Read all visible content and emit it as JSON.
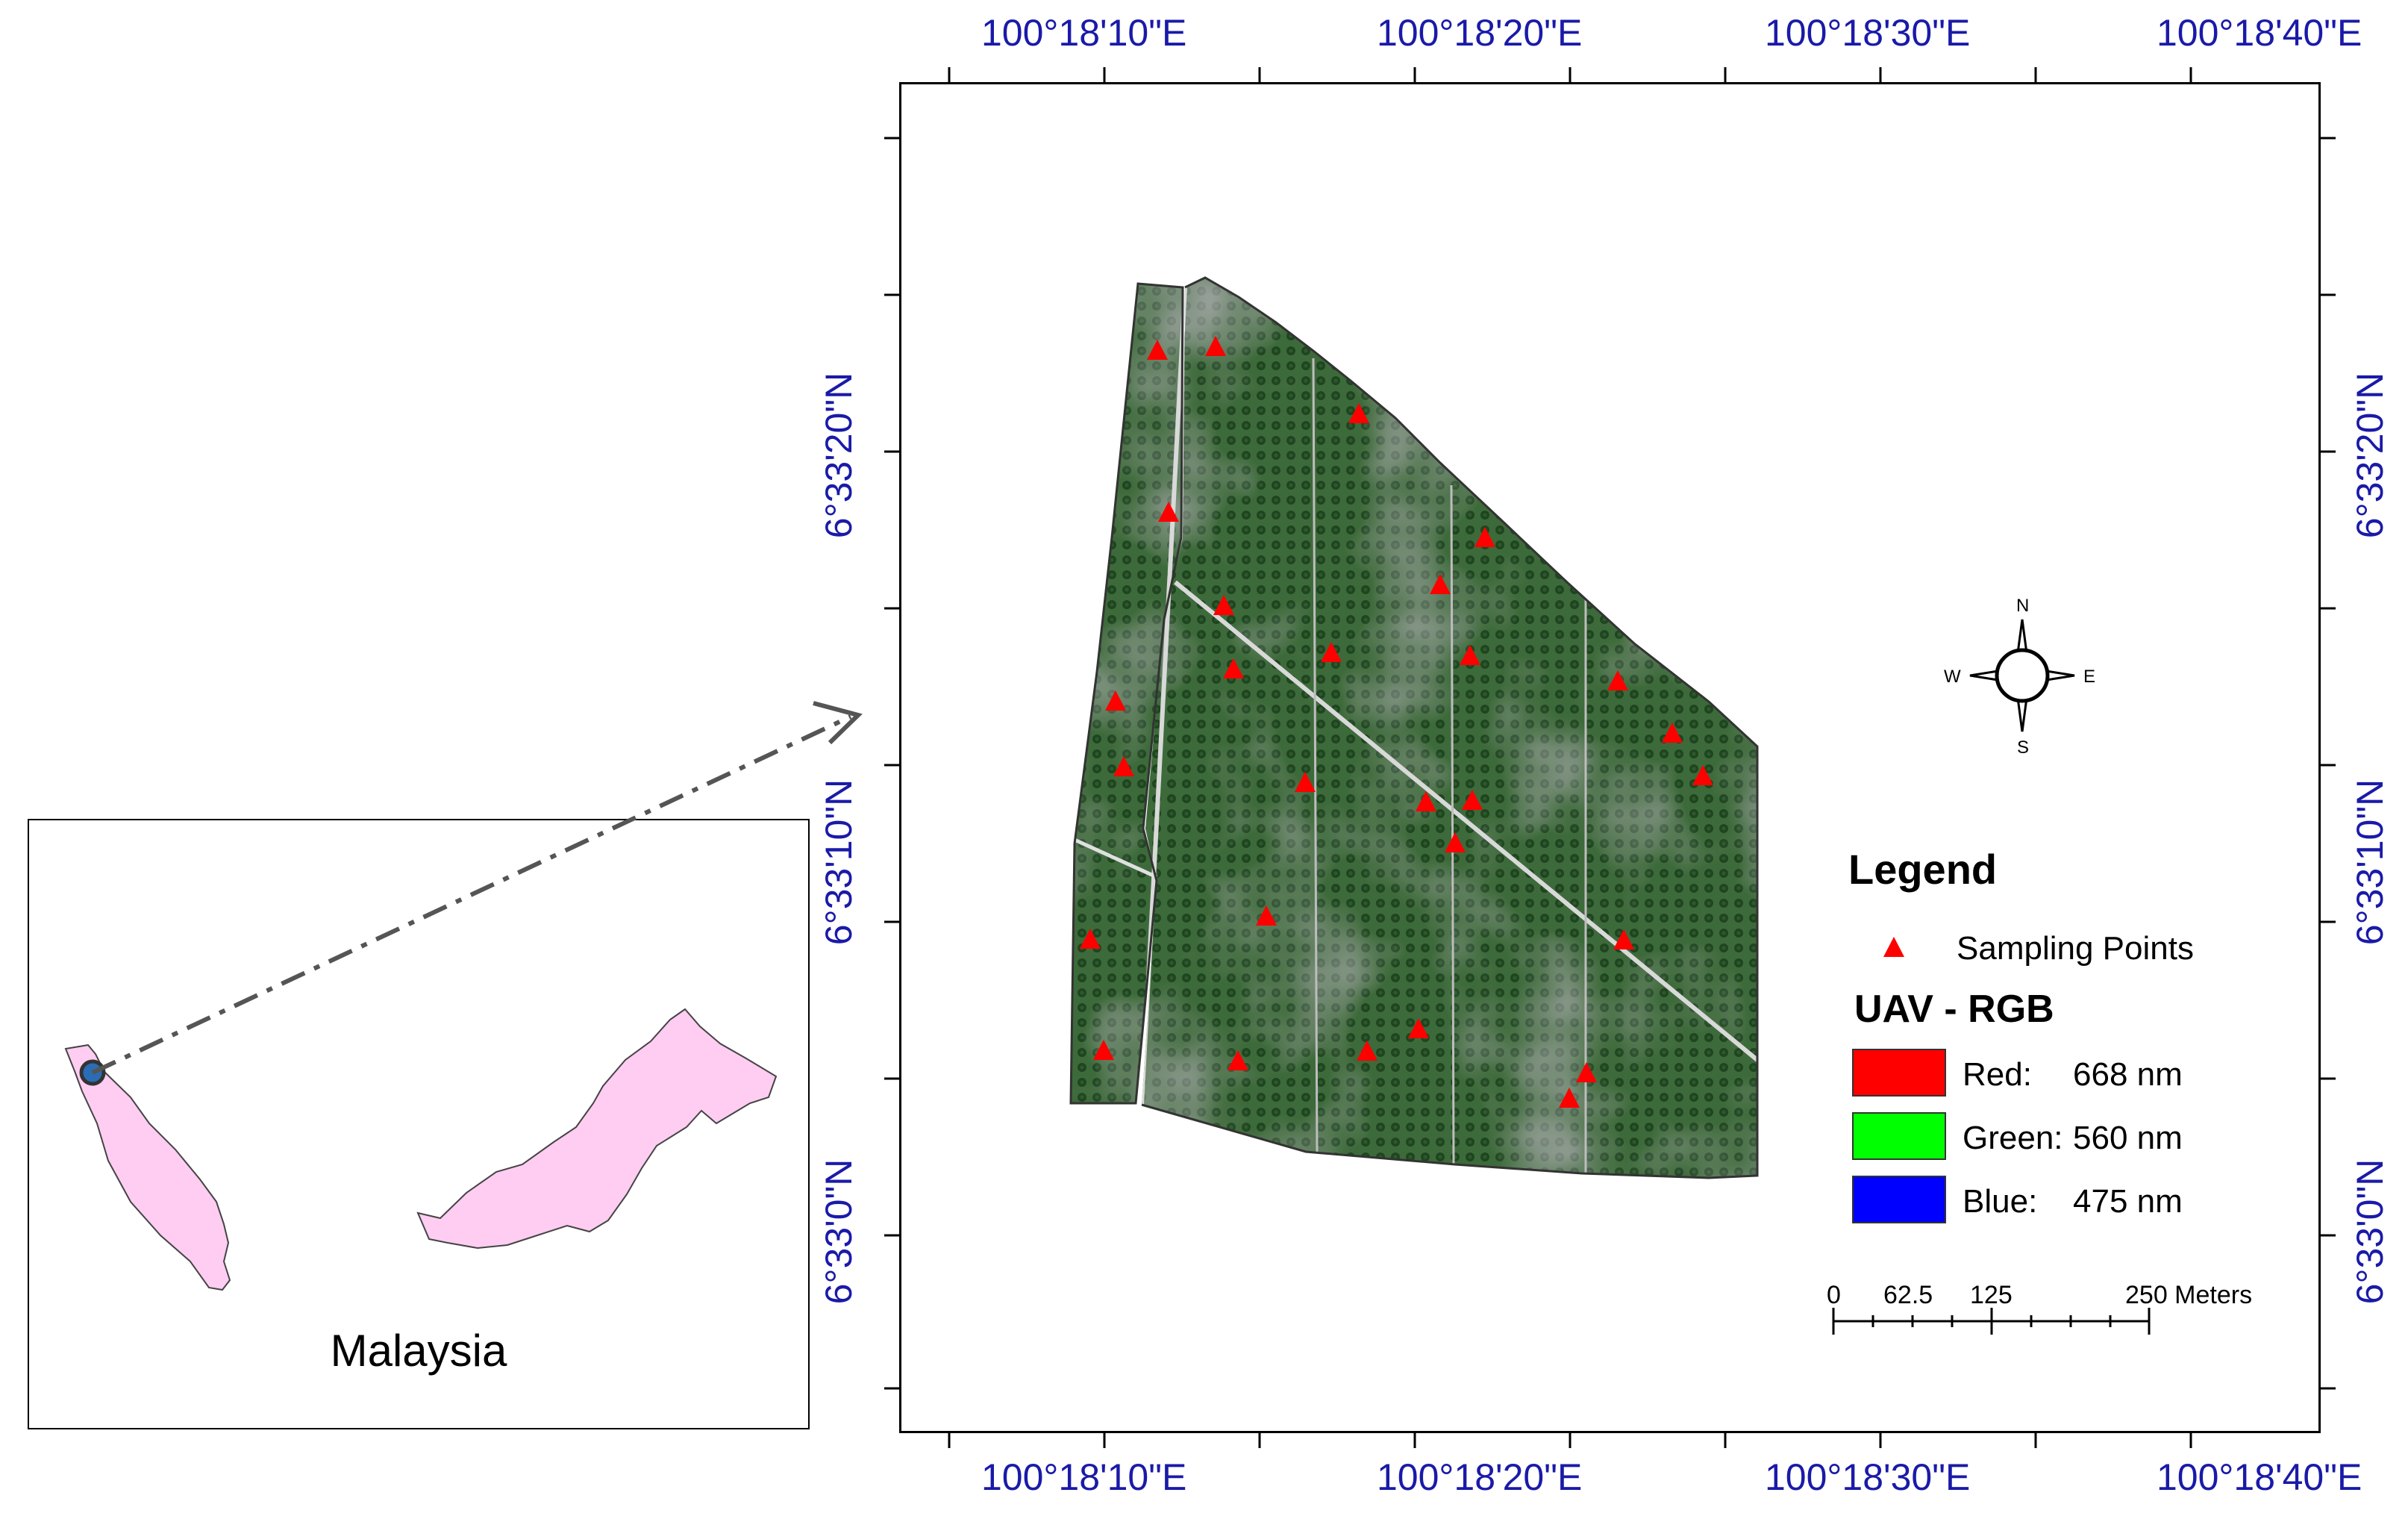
{
  "top_axis_labels": [
    "100°18'10\"E",
    "100°18'20\"E",
    "100°18'30\"E",
    "100°18'40\"E"
  ],
  "bottom_axis_labels": [
    "100°18'10\"E",
    "100°18'20\"E",
    "100°18'30\"E",
    "100°18'40\"E"
  ],
  "left_axis_labels": [
    "6°33'20\"N",
    "6°33'10\"N",
    "6°33'0\"N"
  ],
  "right_axis_labels": [
    "6°33'20\"N",
    "6°33'10\"N",
    "6°33'0\"N"
  ],
  "inset": {
    "country_label": "Malaysia"
  },
  "compass": {
    "n": "N",
    "s": "S",
    "e": "E",
    "w": "W"
  },
  "legend": {
    "title": "Legend",
    "sampling_label": "Sampling Points",
    "uav_title": "UAV - RGB",
    "bands": [
      {
        "name": "Red:",
        "value": "668 nm",
        "color": "#ff0000"
      },
      {
        "name": "Green:",
        "value": "560 nm",
        "color": "#00ff00"
      },
      {
        "name": "Blue:",
        "value": "475 nm",
        "color": "#0000ff"
      }
    ]
  },
  "scale_bar": {
    "ticks": [
      "0",
      "62.5",
      "125",
      "250 Meters"
    ]
  },
  "colors": {
    "coord_text": "#1a1aa8",
    "land": "#ffcdf2",
    "marker": "#ff0000"
  }
}
